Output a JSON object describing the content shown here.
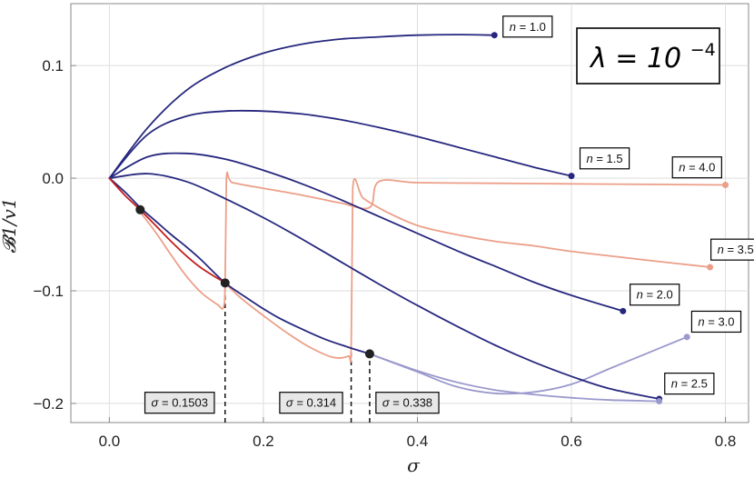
{
  "chart_data": {
    "type": "line",
    "title": "",
    "xlabel": "σ",
    "ylabel": "𝓑1/v1",
    "xlim": [
      -0.05,
      0.83
    ],
    "ylim": [
      -0.217,
      0.155
    ],
    "xticks": [
      0.0,
      0.2,
      0.4,
      0.6,
      0.8
    ],
    "xtick_labels": [
      "0.0",
      "0.2",
      "0.4",
      "0.6",
      "0.8"
    ],
    "yticks": [
      -0.2,
      -0.1,
      0.0,
      0.1
    ],
    "ytick_labels": [
      "−0.2",
      "−0.1",
      "0.0",
      "0.1"
    ],
    "grid": true,
    "annotation": {
      "symbol": "λ",
      "text": "λ = 10",
      "exponent": "−4"
    },
    "colors": {
      "blue": "#26277e",
      "salmon": "#ec9f88",
      "red": "#c41e1e",
      "lavender": "#9a98cc",
      "grid": "#dedede"
    },
    "series": [
      {
        "name": "n = 1.0",
        "color": "#26277e",
        "x": [
          0,
          0.05,
          0.1,
          0.15,
          0.2,
          0.25,
          0.3,
          0.35,
          0.4,
          0.45,
          0.5
        ],
        "y": [
          0,
          0.045,
          0.078,
          0.098,
          0.111,
          0.119,
          0.1235,
          0.1255,
          0.127,
          0.1275,
          0.127
        ]
      },
      {
        "name": "n = 1.5",
        "color": "#26277e",
        "x": [
          0,
          0.05,
          0.1,
          0.15,
          0.2,
          0.25,
          0.3,
          0.35,
          0.4,
          0.45,
          0.5,
          0.55,
          0.6
        ],
        "y": [
          0,
          0.039,
          0.055,
          0.0595,
          0.0595,
          0.057,
          0.052,
          0.045,
          0.037,
          0.028,
          0.019,
          0.01,
          0.002
        ]
      },
      {
        "name": "n = 2.0",
        "color": "#26277e",
        "x": [
          0,
          0.05,
          0.1,
          0.15,
          0.2,
          0.25,
          0.3,
          0.35,
          0.4,
          0.45,
          0.5,
          0.55,
          0.6,
          0.667
        ],
        "y": [
          0,
          0.019,
          0.022,
          0.017,
          0.007,
          -0.005,
          -0.019,
          -0.034,
          -0.049,
          -0.064,
          -0.078,
          -0.092,
          -0.104,
          -0.118
        ]
      },
      {
        "name": "n = 2.5",
        "color": "#26277e",
        "x": [
          0,
          0.05,
          0.1,
          0.15,
          0.2,
          0.25,
          0.3,
          0.35,
          0.4,
          0.45,
          0.5,
          0.55,
          0.6,
          0.65,
          0.714
        ],
        "y": [
          0,
          0.004,
          -0.003,
          -0.018,
          -0.035,
          -0.054,
          -0.074,
          -0.094,
          -0.113,
          -0.131,
          -0.148,
          -0.163,
          -0.176,
          -0.187,
          -0.196
        ]
      },
      {
        "name": "n = 2.5 (beyond σ = 0.338)",
        "color": "#9a98cc",
        "x": [
          0.338,
          0.4,
          0.45,
          0.5,
          0.55,
          0.6,
          0.65,
          0.714
        ],
        "y": [
          -0.156,
          -0.171,
          -0.181,
          -0.188,
          -0.192,
          -0.195,
          -0.197,
          -0.198
        ]
      },
      {
        "name": "n = 3.0",
        "color": "#26277e",
        "x": [
          0,
          0.02,
          0.04,
          0.06,
          0.08,
          0.1,
          0.12,
          0.1503,
          0.18,
          0.2,
          0.22,
          0.25,
          0.28,
          0.31,
          0.338
        ],
        "y": [
          0,
          -0.012,
          -0.026,
          -0.038,
          -0.05,
          -0.061,
          -0.073,
          -0.093,
          -0.107,
          -0.116,
          -0.124,
          -0.134,
          -0.143,
          -0.15,
          -0.156
        ]
      },
      {
        "name": "n = 3.0 (beyond σ = 0.338)",
        "color": "#9a98cc",
        "x": [
          0.338,
          0.4,
          0.45,
          0.5,
          0.55,
          0.6,
          0.65,
          0.7,
          0.75
        ],
        "y": [
          -0.156,
          -0.172,
          -0.185,
          -0.191,
          -0.19,
          -0.183,
          -0.169,
          -0.155,
          -0.141
        ]
      },
      {
        "name": "n = 4.0 (initial branch)",
        "color": "#c41e1e",
        "x": [
          0,
          0.02,
          0.04,
          0.06,
          0.08,
          0.1,
          0.12,
          0.1503
        ],
        "y": [
          0,
          -0.015,
          -0.028,
          -0.042,
          -0.056,
          -0.069,
          -0.08,
          -0.093
        ]
      },
      {
        "name": "n = 4.0",
        "color": "#ec9f88",
        "x": [
          0.04,
          0.06,
          0.08,
          0.1,
          0.12,
          0.14,
          0.148,
          0.1503,
          0.152,
          0.16,
          0.2,
          0.25,
          0.3,
          0.338,
          0.35,
          0.4,
          0.5,
          0.6,
          0.7,
          0.8
        ],
        "y": [
          -0.03,
          -0.048,
          -0.068,
          -0.087,
          -0.102,
          -0.112,
          -0.115,
          -0.094,
          -0.001,
          -0.004,
          -0.009,
          -0.015,
          -0.022,
          -0.026,
          -0.003,
          -0.004,
          -0.0045,
          -0.005,
          -0.0055,
          -0.006
        ]
      },
      {
        "name": "n = 3.5",
        "color": "#ec9f88",
        "x": [
          0.1503,
          0.17,
          0.2,
          0.23,
          0.26,
          0.29,
          0.31,
          0.314,
          0.316,
          0.33,
          0.36,
          0.4,
          0.45,
          0.5,
          0.55,
          0.6,
          0.65,
          0.7,
          0.78
        ],
        "y": [
          -0.093,
          -0.106,
          -0.122,
          -0.137,
          -0.15,
          -0.159,
          -0.158,
          -0.15,
          -0.009,
          -0.018,
          -0.03,
          -0.042,
          -0.05,
          -0.056,
          -0.06,
          -0.065,
          -0.069,
          -0.073,
          -0.079
        ]
      }
    ],
    "points": [
      {
        "x": 0.04,
        "y": -0.028,
        "color": "#222222"
      },
      {
        "x": 0.1503,
        "y": -0.093,
        "color": "#222222"
      },
      {
        "x": 0.338,
        "y": -0.156,
        "color": "#222222"
      },
      {
        "x": 0.5,
        "y": 0.127,
        "color": "#26277e"
      },
      {
        "x": 0.6,
        "y": 0.002,
        "color": "#26277e"
      },
      {
        "x": 0.667,
        "y": -0.118,
        "color": "#26277e"
      },
      {
        "x": 0.714,
        "y": -0.196,
        "color": "#26277e"
      },
      {
        "x": 0.714,
        "y": -0.198,
        "color": "#9a98cc"
      },
      {
        "x": 0.75,
        "y": -0.141,
        "color": "#9a98cc"
      },
      {
        "x": 0.78,
        "y": -0.079,
        "color": "#ec9f88"
      },
      {
        "x": 0.8,
        "y": -0.006,
        "color": "#ec9f88"
      }
    ],
    "vlines": [
      {
        "x": 0.1503,
        "y_top": -0.093
      },
      {
        "x": 0.314,
        "y_top": -0.15
      },
      {
        "x": 0.338,
        "y_top": -0.156
      }
    ],
    "labels": [
      {
        "text": "n = 1.0",
        "italic": "n",
        "rest": " = 1.0",
        "x": 0.51,
        "y": 0.135,
        "shaded": false
      },
      {
        "text": "n = 1.5",
        "italic": "n",
        "rest": " = 1.5",
        "x": 0.61,
        "y": 0.018,
        "shaded": false
      },
      {
        "text": "n = 4.0",
        "italic": "n",
        "rest": " = 4.0",
        "x": 0.73,
        "y": 0.01,
        "shaded": false
      },
      {
        "text": "n = 3.5",
        "italic": "n",
        "rest": " = 3.5",
        "x": 0.78,
        "y": -0.063,
        "shaded": false
      },
      {
        "text": "n = 2.0",
        "italic": "n",
        "rest": " = 2.0",
        "x": 0.675,
        "y": -0.103,
        "shaded": false
      },
      {
        "text": "n = 3.0",
        "italic": "n",
        "rest": " = 3.0",
        "x": 0.755,
        "y": -0.127,
        "shaded": false
      },
      {
        "text": "n = 2.5",
        "italic": "n",
        "rest": " = 2.5",
        "x": 0.72,
        "y": -0.182,
        "shaded": false
      },
      {
        "text": "σ = 0.1503",
        "italic": "σ",
        "rest": " = 0.1503",
        "x": 0.045,
        "y": -0.199,
        "shaded": true
      },
      {
        "text": "σ = 0.314",
        "italic": "σ",
        "rest": " = 0.314",
        "x": 0.22,
        "y": -0.199,
        "shaded": true
      },
      {
        "text": "σ = 0.338",
        "italic": "σ",
        "rest": " = 0.338",
        "x": 0.345,
        "y": -0.199,
        "shaded": true
      }
    ]
  }
}
